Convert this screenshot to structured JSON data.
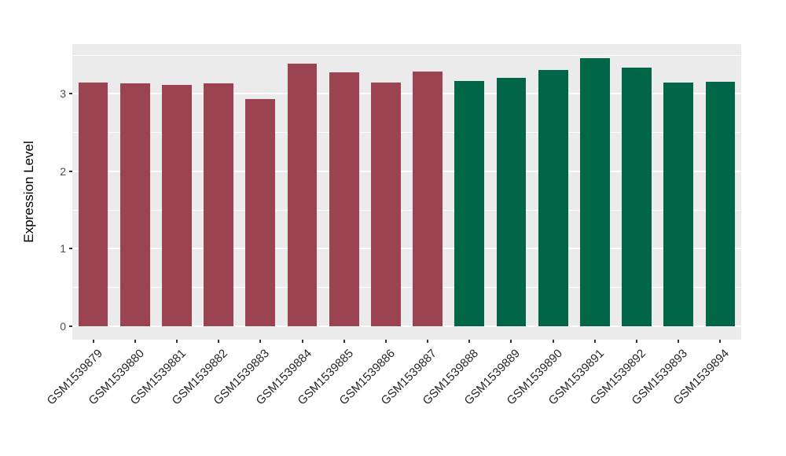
{
  "chart_data": {
    "type": "bar",
    "title": "",
    "xlabel": "",
    "ylabel": "Expression Level",
    "categories": [
      "GSM1539879",
      "GSM1539880",
      "GSM1539881",
      "GSM1539882",
      "GSM1539883",
      "GSM1539884",
      "GSM1539885",
      "GSM1539886",
      "GSM1539887",
      "GSM1539888",
      "GSM1539889",
      "GSM1539890",
      "GSM1539891",
      "GSM1539892",
      "GSM1539893",
      "GSM1539894"
    ],
    "values": [
      3.15,
      3.14,
      3.12,
      3.14,
      2.93,
      3.39,
      3.28,
      3.15,
      3.29,
      3.17,
      3.21,
      3.31,
      3.46,
      3.34,
      3.15,
      3.16
    ],
    "bar_colors": [
      "#9B4351",
      "#9B4351",
      "#9B4351",
      "#9B4351",
      "#9B4351",
      "#9B4351",
      "#9B4351",
      "#9B4351",
      "#9B4351",
      "#006647",
      "#006647",
      "#006647",
      "#006647",
      "#006647",
      "#006647",
      "#006647"
    ],
    "group_colors": {
      "left_group": "#9B4351",
      "right_group": "#006647"
    },
    "group_split_index": 9,
    "yticks": [
      0,
      1,
      2,
      3
    ],
    "ytick_labels": [
      "0",
      "1",
      "2",
      "3"
    ],
    "minor_gridlines": [
      0.5,
      1.5,
      2.5,
      3.5
    ],
    "ylim": [
      -0.174,
      3.644
    ],
    "bar_width_fraction": 0.71,
    "grid": true,
    "legend_position": "none",
    "panel_background": "#EBEBEB",
    "gridline_color": "#FFFFFF",
    "tick_color": "#333333",
    "axis_text_color": "#4D4D4D",
    "x_axis_text_color": "#262626",
    "outer_background": "#FFFFFF"
  }
}
